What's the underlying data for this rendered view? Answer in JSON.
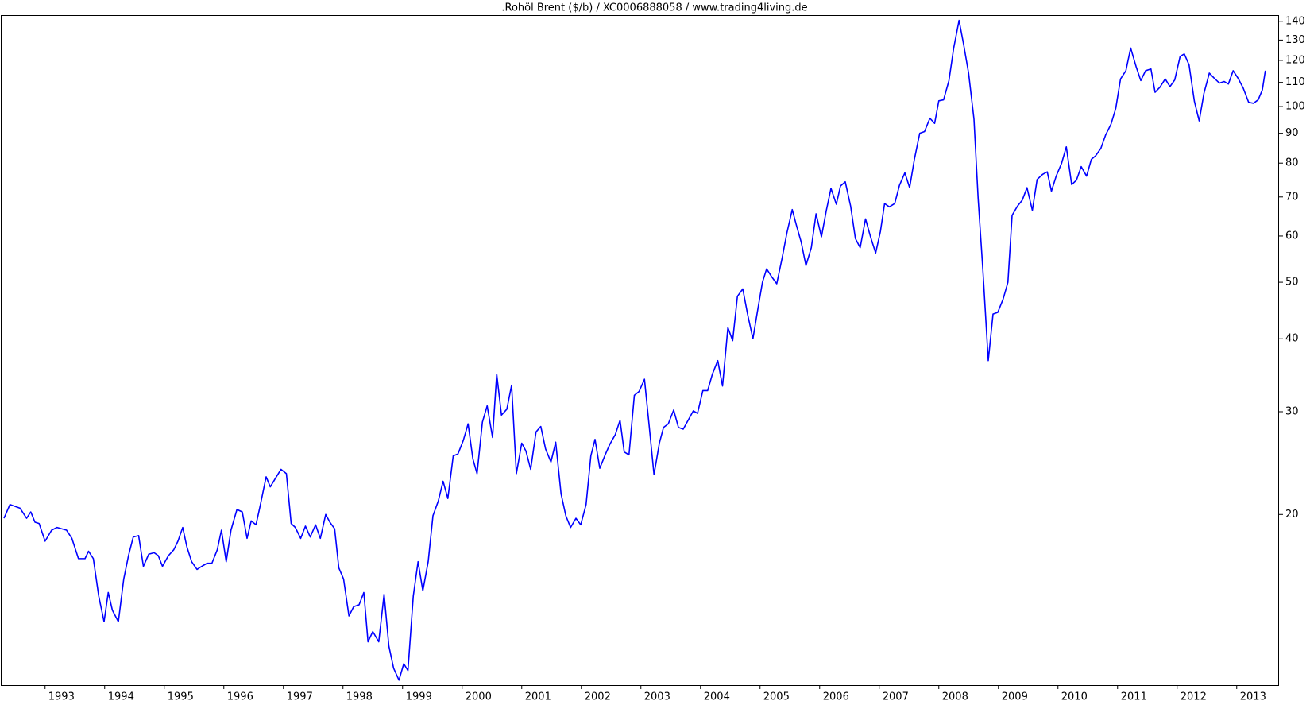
{
  "chart_data": {
    "type": "line",
    "title": ".Rohöl Brent ($/b) / XC0006888058 / www.trading4living.de",
    "color": "#0000ff",
    "log_scale": true,
    "grid": false,
    "xlim": [
      1992.27,
      2013.71
    ],
    "xticks": [
      1993,
      1994,
      1995,
      1996,
      1997,
      1998,
      1999,
      2000,
      2001,
      2002,
      2003,
      2004,
      2005,
      2006,
      2007,
      2008,
      2009,
      2010,
      2011,
      2012,
      2013
    ],
    "ylim": [
      10.2,
      143
    ],
    "yticks": [
      20,
      30,
      40,
      50,
      60,
      70,
      80,
      90,
      100,
      110,
      120,
      130,
      140
    ],
    "x": [
      1992.31,
      1992.41,
      1992.58,
      1992.69,
      1992.76,
      1992.83,
      1992.9,
      1993.0,
      1993.11,
      1993.2,
      1993.36,
      1993.45,
      1993.56,
      1993.67,
      1993.73,
      1993.81,
      1993.9,
      1993.99,
      1994.06,
      1994.13,
      1994.23,
      1994.32,
      1994.4,
      1994.48,
      1994.57,
      1994.65,
      1994.74,
      1994.83,
      1994.9,
      1994.97,
      1995.07,
      1995.16,
      1995.23,
      1995.31,
      1995.38,
      1995.46,
      1995.55,
      1995.63,
      1995.72,
      1995.8,
      1995.89,
      1995.96,
      1996.04,
      1996.12,
      1996.22,
      1996.31,
      1996.39,
      1996.46,
      1996.54,
      1996.61,
      1996.71,
      1996.78,
      1996.87,
      1996.96,
      1997.05,
      1997.13,
      1997.2,
      1997.29,
      1997.37,
      1997.45,
      1997.54,
      1997.62,
      1997.71,
      1997.78,
      1997.86,
      1997.93,
      1998.01,
      1998.1,
      1998.18,
      1998.27,
      1998.35,
      1998.42,
      1998.5,
      1998.6,
      1998.69,
      1998.77,
      1998.85,
      1998.94,
      1999.02,
      1999.09,
      1999.18,
      1999.26,
      1999.34,
      1999.43,
      1999.51,
      1999.6,
      1999.68,
      1999.76,
      1999.85,
      1999.93,
      2000.02,
      2000.1,
      2000.18,
      2000.25,
      2000.34,
      2000.42,
      2000.51,
      2000.58,
      2000.66,
      2000.75,
      2000.83,
      2000.91,
      2001.0,
      2001.07,
      2001.15,
      2001.24,
      2001.32,
      2001.4,
      2001.49,
      2001.57,
      2001.66,
      2001.74,
      2001.82,
      2001.91,
      2001.99,
      2002.08,
      2002.16,
      2002.23,
      2002.31,
      2002.4,
      2002.48,
      2002.57,
      2002.65,
      2002.72,
      2002.8,
      2002.89,
      2002.97,
      2003.06,
      2003.14,
      2003.22,
      2003.31,
      2003.38,
      2003.46,
      2003.55,
      2003.63,
      2003.71,
      2003.8,
      2003.88,
      2003.95,
      2004.04,
      2004.12,
      2004.2,
      2004.29,
      2004.37,
      2004.46,
      2004.54,
      2004.62,
      2004.71,
      2004.79,
      2004.88,
      2004.96,
      2005.04,
      2005.11,
      2005.2,
      2005.28,
      2005.37,
      2005.45,
      2005.54,
      2005.61,
      2005.69,
      2005.77,
      2005.86,
      2005.94,
      2006.03,
      2006.11,
      2006.19,
      2006.28,
      2006.35,
      2006.43,
      2006.52,
      2006.6,
      2006.68,
      2006.77,
      2006.85,
      2006.94,
      2007.02,
      2007.09,
      2007.17,
      2007.26,
      2007.34,
      2007.43,
      2007.51,
      2007.59,
      2007.68,
      2007.76,
      2007.85,
      2007.93,
      2008.0,
      2008.08,
      2008.17,
      2008.25,
      2008.34,
      2008.42,
      2008.5,
      2008.59,
      2008.66,
      2008.74,
      2008.83,
      2008.91,
      2008.99,
      2009.08,
      2009.16,
      2009.23,
      2009.32,
      2009.4,
      2009.48,
      2009.57,
      2009.65,
      2009.74,
      2009.82,
      2009.89,
      2009.97,
      2010.06,
      2010.14,
      2010.23,
      2010.31,
      2010.39,
      2010.48,
      2010.56,
      2010.63,
      2010.72,
      2010.8,
      2010.89,
      2010.97,
      2011.05,
      2011.14,
      2011.22,
      2011.31,
      2011.39,
      2011.47,
      2011.56,
      2011.63,
      2011.71,
      2011.8,
      2011.88,
      2011.96,
      2012.05,
      2012.12,
      2012.2,
      2012.29,
      2012.37,
      2012.45,
      2012.54,
      2012.62,
      2012.71,
      2012.79,
      2012.86,
      2012.94,
      2013.03,
      2013.11,
      2013.2,
      2013.28,
      2013.36,
      2013.43,
      2013.48
    ],
    "values": [
      19.7,
      20.8,
      20.5,
      19.7,
      20.2,
      19.4,
      19.3,
      18.0,
      18.8,
      19.0,
      18.8,
      18.2,
      16.8,
      16.8,
      17.3,
      16.8,
      14.5,
      13.1,
      14.7,
      13.7,
      13.1,
      15.5,
      17.0,
      18.3,
      18.4,
      16.3,
      17.1,
      17.2,
      17.0,
      16.3,
      17.0,
      17.4,
      18.0,
      19.0,
      17.6,
      16.6,
      16.1,
      16.3,
      16.5,
      16.5,
      17.4,
      18.8,
      16.6,
      18.8,
      20.4,
      20.2,
      18.2,
      19.5,
      19.2,
      20.7,
      23.2,
      22.3,
      23.1,
      23.9,
      23.5,
      19.3,
      19.0,
      18.2,
      19.1,
      18.3,
      19.2,
      18.2,
      20.0,
      19.4,
      18.9,
      16.2,
      15.5,
      13.4,
      13.9,
      14.0,
      14.7,
      12.1,
      12.6,
      12.1,
      14.6,
      11.9,
      10.9,
      10.4,
      11.1,
      10.8,
      14.5,
      16.6,
      14.8,
      16.6,
      19.9,
      21.1,
      22.8,
      21.3,
      25.2,
      25.4,
      26.8,
      28.6,
      24.9,
      23.5,
      28.8,
      30.7,
      27.1,
      34.8,
      29.6,
      30.3,
      33.3,
      23.5,
      26.5,
      25.7,
      23.9,
      27.7,
      28.3,
      25.9,
      24.6,
      26.6,
      21.7,
      19.9,
      19.0,
      19.7,
      19.2,
      20.8,
      25.2,
      26.9,
      24.0,
      25.3,
      26.4,
      27.4,
      29.0,
      25.6,
      25.3,
      32.0,
      32.5,
      34.1,
      28.3,
      23.4,
      26.5,
      28.2,
      28.6,
      30.2,
      28.2,
      28.0,
      29.1,
      30.1,
      29.8,
      32.6,
      32.6,
      34.8,
      36.7,
      33.2,
      41.8,
      39.7,
      47.3,
      48.7,
      44.1,
      40.0,
      44.8,
      50.0,
      52.7,
      51.0,
      49.7,
      55.0,
      60.7,
      66.6,
      62.6,
      58.6,
      53.4,
      57.3,
      65.5,
      59.8,
      66.2,
      72.4,
      68.0,
      73.1,
      74.3,
      67.5,
      59.4,
      57.3,
      64.2,
      60.0,
      56.1,
      61.1,
      68.2,
      67.3,
      68.2,
      73.3,
      77.0,
      72.6,
      81.2,
      90.0,
      90.6,
      95.5,
      93.6,
      102.3,
      102.7,
      110.8,
      126.0,
      140.5,
      127.2,
      114.1,
      95.2,
      69.6,
      52.4,
      36.7,
      44.1,
      44.4,
      46.8,
      50.0,
      65.1,
      67.5,
      69.1,
      72.6,
      66.4,
      75.0,
      76.5,
      77.3,
      71.6,
      76.0,
      79.9,
      85.3,
      73.5,
      74.8,
      78.9,
      76.0,
      81.2,
      82.3,
      84.8,
      89.4,
      93.3,
      99.3,
      111.5,
      115.2,
      126.0,
      117.2,
      110.8,
      115.2,
      116.0,
      105.8,
      107.9,
      111.5,
      108.2,
      111.1,
      121.9,
      123.1,
      117.9,
      102.0,
      94.5,
      105.4,
      114.1,
      111.9,
      109.7,
      110.4,
      109.3,
      115.2,
      111.5,
      107.5,
      101.7,
      101.3,
      102.7,
      106.8,
      115.2
    ]
  }
}
